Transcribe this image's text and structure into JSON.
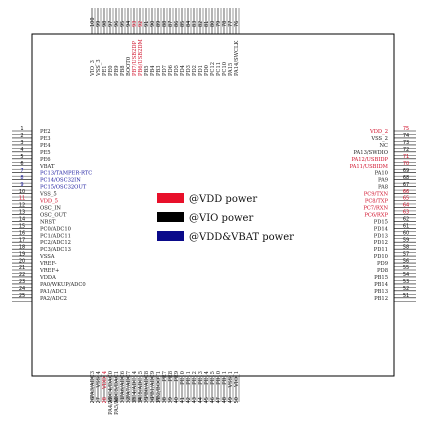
{
  "colors": {
    "red": "#e8102a",
    "black": "#000000",
    "blue": "#0a0a8a",
    "red_text": "#d0102a",
    "blue_text": "#1a1aa0"
  },
  "legend": [
    {
      "label": "@VDD power",
      "color": "#e8102a"
    },
    {
      "label": "@VIO power",
      "color": "#000000"
    },
    {
      "label": "@VDD&VBAT power",
      "color": "#0a0a8a"
    }
  ],
  "left_pins": [
    {
      "num": "1",
      "name": "PE2",
      "c": "k"
    },
    {
      "num": "2",
      "name": "PE3",
      "c": "k"
    },
    {
      "num": "3",
      "name": "PE4",
      "c": "k"
    },
    {
      "num": "4",
      "name": "PE5",
      "c": "k"
    },
    {
      "num": "5",
      "name": "PE6",
      "c": "k"
    },
    {
      "num": "6",
      "name": "VBAT",
      "c": "k"
    },
    {
      "num": "7",
      "name": "PC13/TAMPER-RTC",
      "c": "b"
    },
    {
      "num": "8",
      "name": "PC14/OSC32IN",
      "c": "b"
    },
    {
      "num": "9",
      "name": "PC15/OSC32OUT",
      "c": "b"
    },
    {
      "num": "10",
      "name": "VSS_5",
      "c": "k"
    },
    {
      "num": "11",
      "name": "VDD_5",
      "c": "r"
    },
    {
      "num": "12",
      "name": "OSC_IN",
      "c": "k"
    },
    {
      "num": "13",
      "name": "OSC_OUT",
      "c": "k"
    },
    {
      "num": "14",
      "name": "NRST",
      "c": "k"
    },
    {
      "num": "15",
      "name": "PC0/ADC10",
      "c": "k"
    },
    {
      "num": "16",
      "name": "PC1/ADC11",
      "c": "k"
    },
    {
      "num": "17",
      "name": "PC2/ADC12",
      "c": "k"
    },
    {
      "num": "18",
      "name": "PC3/ADC13",
      "c": "k"
    },
    {
      "num": "19",
      "name": "VSSA",
      "c": "k"
    },
    {
      "num": "20",
      "name": "VREF-",
      "c": "k"
    },
    {
      "num": "21",
      "name": "VREF+",
      "c": "k"
    },
    {
      "num": "22",
      "name": "VDDA",
      "c": "k"
    },
    {
      "num": "23",
      "name": "PA0/WKUP/ADC0",
      "c": "k"
    },
    {
      "num": "24",
      "name": "PA1/ADC1",
      "c": "k"
    },
    {
      "num": "25",
      "name": "PA2/ADC2",
      "c": "k"
    }
  ],
  "right_pins": [
    {
      "num": "75",
      "name": "VDD_2",
      "c": "r"
    },
    {
      "num": "74",
      "name": "VSS_2",
      "c": "k"
    },
    {
      "num": "73",
      "name": "NC",
      "c": "k"
    },
    {
      "num": "72",
      "name": "PA13/SWDIO",
      "c": "k"
    },
    {
      "num": "71",
      "name": "PA12/USBIDP",
      "c": "r"
    },
    {
      "num": "70",
      "name": "PA11/USBIDM",
      "c": "r"
    },
    {
      "num": "69",
      "name": "PA10",
      "c": "k"
    },
    {
      "num": "68",
      "name": "PA9",
      "c": "k"
    },
    {
      "num": "67",
      "name": "PA8",
      "c": "k"
    },
    {
      "num": "66",
      "name": "PC9/TXN",
      "c": "r"
    },
    {
      "num": "65",
      "name": "PC8/TXP",
      "c": "r"
    },
    {
      "num": "64",
      "name": "PC7/RXN",
      "c": "r"
    },
    {
      "num": "63",
      "name": "PC6/RXP",
      "c": "r"
    },
    {
      "num": "62",
      "name": "PD15",
      "c": "k"
    },
    {
      "num": "61",
      "name": "PD14",
      "c": "k"
    },
    {
      "num": "60",
      "name": "PD13",
      "c": "k"
    },
    {
      "num": "59",
      "name": "PD12",
      "c": "k"
    },
    {
      "num": "58",
      "name": "PD11",
      "c": "k"
    },
    {
      "num": "57",
      "name": "PD10",
      "c": "k"
    },
    {
      "num": "56",
      "name": "PD9",
      "c": "k"
    },
    {
      "num": "55",
      "name": "PD8",
      "c": "k"
    },
    {
      "num": "54",
      "name": "PB15",
      "c": "k"
    },
    {
      "num": "53",
      "name": "PB14",
      "c": "k"
    },
    {
      "num": "52",
      "name": "PB13",
      "c": "k"
    },
    {
      "num": "51",
      "name": "PB12",
      "c": "k"
    }
  ],
  "top_pins": [
    {
      "num": "100",
      "name": "VIO_3",
      "c": "k"
    },
    {
      "num": "99",
      "name": "VSS_3",
      "c": "k"
    },
    {
      "num": "98",
      "name": "PE1",
      "c": "k"
    },
    {
      "num": "97",
      "name": "PE0",
      "c": "k"
    },
    {
      "num": "96",
      "name": "PB9",
      "c": "k"
    },
    {
      "num": "95",
      "name": "PB8",
      "c": "k"
    },
    {
      "num": "94",
      "name": "BOOT0",
      "c": "k"
    },
    {
      "num": "93",
      "name": "PB7/USB2DP",
      "c": "r"
    },
    {
      "num": "92",
      "name": "PB6/USB2DM",
      "c": "r"
    },
    {
      "num": "91",
      "name": "PB5",
      "c": "k"
    },
    {
      "num": "90",
      "name": "PB4",
      "c": "k"
    },
    {
      "num": "89",
      "name": "PB3",
      "c": "k"
    },
    {
      "num": "88",
      "name": "PD7",
      "c": "k"
    },
    {
      "num": "87",
      "name": "PD6",
      "c": "k"
    },
    {
      "num": "86",
      "name": "PD5",
      "c": "k"
    },
    {
      "num": "85",
      "name": "PD4",
      "c": "k"
    },
    {
      "num": "84",
      "name": "PD3",
      "c": "k"
    },
    {
      "num": "83",
      "name": "PD2",
      "c": "k"
    },
    {
      "num": "82",
      "name": "PD1",
      "c": "k"
    },
    {
      "num": "81",
      "name": "PD0",
      "c": "k"
    },
    {
      "num": "80",
      "name": "PC12",
      "c": "k"
    },
    {
      "num": "79",
      "name": "PC11",
      "c": "k"
    },
    {
      "num": "78",
      "name": "PC10",
      "c": "k"
    },
    {
      "num": "77",
      "name": "PA15",
      "c": "k"
    },
    {
      "num": "76",
      "name": "PA14/SWCLK",
      "c": "k"
    }
  ],
  "bottom_pins": [
    {
      "num": "26",
      "name": "PA3/ADC3",
      "c": "k"
    },
    {
      "num": "27",
      "name": "VSS_4",
      "c": "k"
    },
    {
      "num": "28",
      "name": "VDD_4",
      "c": "r"
    },
    {
      "num": "29",
      "name": "PA4/ADC4/DAC0",
      "c": "k"
    },
    {
      "num": "30",
      "name": "PA5/ADC5/DAC1",
      "c": "k"
    },
    {
      "num": "31",
      "name": "PA6/ADC6",
      "c": "k"
    },
    {
      "num": "32",
      "name": "PA7/ADC7",
      "c": "k"
    },
    {
      "num": "33",
      "name": "PC4/ADC14",
      "c": "k"
    },
    {
      "num": "34",
      "name": "PC5/ADC15",
      "c": "k"
    },
    {
      "num": "35",
      "name": "PB0/ADC8",
      "c": "k"
    },
    {
      "num": "36",
      "name": "PB1/ADC9",
      "c": "k"
    },
    {
      "num": "37",
      "name": "PB2/BOOT1",
      "c": "k"
    },
    {
      "num": "38",
      "name": "PE7",
      "c": "k"
    },
    {
      "num": "39",
      "name": "PE8",
      "c": "k"
    },
    {
      "num": "40",
      "name": "PE9",
      "c": "k"
    },
    {
      "num": "41",
      "name": "PE10",
      "c": "k"
    },
    {
      "num": "42",
      "name": "PE11",
      "c": "k"
    },
    {
      "num": "43",
      "name": "PE12",
      "c": "k"
    },
    {
      "num": "44",
      "name": "PE13",
      "c": "k"
    },
    {
      "num": "45",
      "name": "PE14",
      "c": "k"
    },
    {
      "num": "46",
      "name": "PE15",
      "c": "k"
    },
    {
      "num": "47",
      "name": "PB10",
      "c": "k"
    },
    {
      "num": "48",
      "name": "PB11",
      "c": "k"
    },
    {
      "num": "49",
      "name": "VSS_1",
      "c": "k"
    },
    {
      "num": "50",
      "name": "VIO_1",
      "c": "k"
    }
  ]
}
